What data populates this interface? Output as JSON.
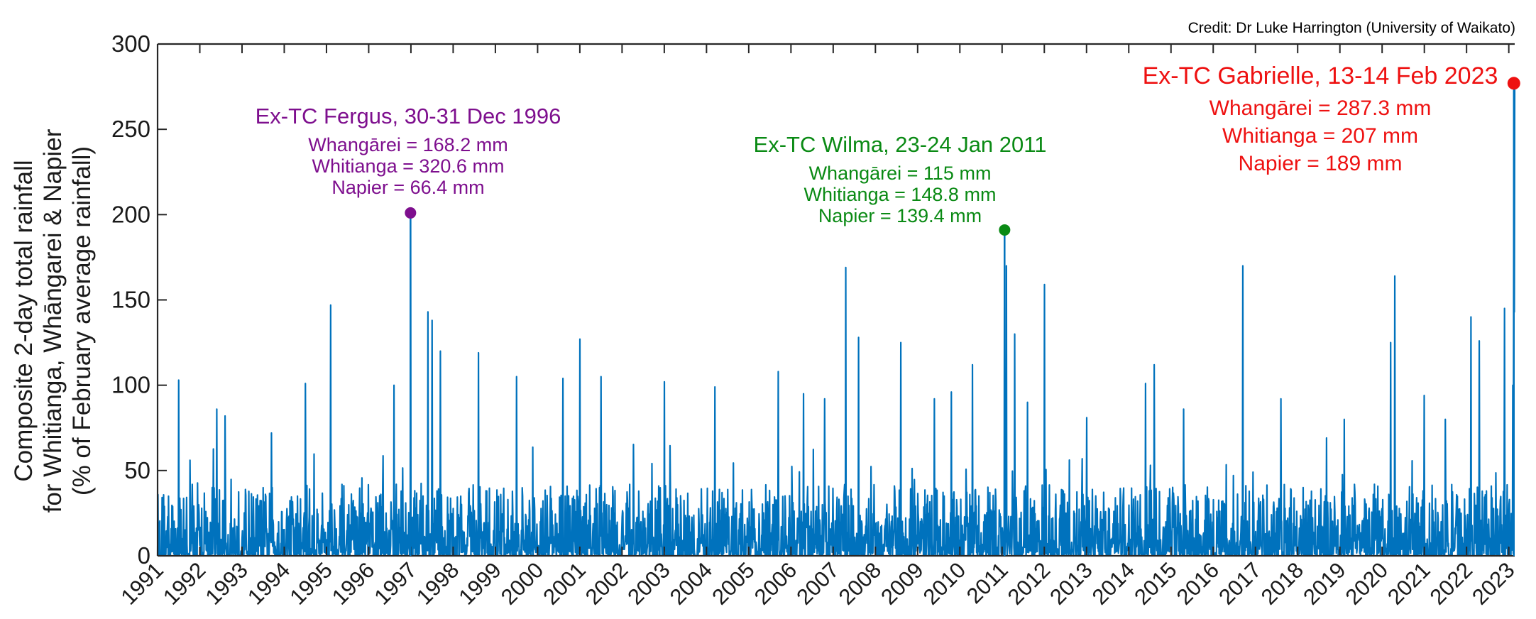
{
  "chart_data": {
    "type": "line",
    "credit": "Credit: Dr Luke Harrington (University of Waikato)",
    "ylabel": [
      "Composite 2-day total rainfall",
      "for Whitianga, Whāngarei & Napier",
      "(% of February average rainfall)"
    ],
    "ylim": [
      0,
      300
    ],
    "yticks": [
      "0",
      "50",
      "100",
      "150",
      "200",
      "250",
      "300"
    ],
    "xlim": [
      1991,
      2023
    ],
    "xticks": [
      "1991",
      "1992",
      "1993",
      "1994",
      "1995",
      "1996",
      "1997",
      "1998",
      "1999",
      "2000",
      "2001",
      "2002",
      "2003",
      "2004",
      "2005",
      "2006",
      "2007",
      "2008",
      "2009",
      "2010",
      "2011",
      "2012",
      "2013",
      "2014",
      "2015",
      "2016",
      "2017",
      "2018",
      "2019",
      "2020",
      "2021",
      "2022",
      "2023"
    ],
    "series_color": "#0072BD",
    "peaks": [
      {
        "x": 1991.5,
        "y": 103
      },
      {
        "x": 1992.4,
        "y": 86
      },
      {
        "x": 1992.6,
        "y": 82
      },
      {
        "x": 1993.7,
        "y": 72
      },
      {
        "x": 1994.5,
        "y": 101
      },
      {
        "x": 1995.1,
        "y": 147
      },
      {
        "x": 1996.6,
        "y": 100
      },
      {
        "x": 1997.4,
        "y": 143
      },
      {
        "x": 1997.5,
        "y": 138
      },
      {
        "x": 1997.7,
        "y": 120
      },
      {
        "x": 1998.6,
        "y": 119
      },
      {
        "x": 1999.5,
        "y": 105
      },
      {
        "x": 2000.6,
        "y": 104
      },
      {
        "x": 2001.0,
        "y": 127
      },
      {
        "x": 2001.5,
        "y": 105
      },
      {
        "x": 2003.0,
        "y": 102
      },
      {
        "x": 2004.2,
        "y": 99
      },
      {
        "x": 2005.7,
        "y": 108
      },
      {
        "x": 2006.3,
        "y": 95
      },
      {
        "x": 2006.8,
        "y": 92
      },
      {
        "x": 2007.3,
        "y": 169
      },
      {
        "x": 2007.6,
        "y": 128
      },
      {
        "x": 2008.6,
        "y": 125
      },
      {
        "x": 2009.4,
        "y": 92
      },
      {
        "x": 2009.8,
        "y": 96
      },
      {
        "x": 2010.3,
        "y": 112
      },
      {
        "x": 2011.1,
        "y": 170
      },
      {
        "x": 2011.3,
        "y": 130
      },
      {
        "x": 2011.6,
        "y": 90
      },
      {
        "x": 2012.0,
        "y": 159
      },
      {
        "x": 2013.0,
        "y": 81
      },
      {
        "x": 2014.4,
        "y": 101
      },
      {
        "x": 2014.6,
        "y": 112
      },
      {
        "x": 2015.3,
        "y": 86
      },
      {
        "x": 2016.7,
        "y": 170
      },
      {
        "x": 2017.6,
        "y": 92
      },
      {
        "x": 2019.1,
        "y": 80
      },
      {
        "x": 2020.2,
        "y": 125
      },
      {
        "x": 2020.3,
        "y": 164
      },
      {
        "x": 2021.0,
        "y": 94
      },
      {
        "x": 2021.5,
        "y": 80
      },
      {
        "x": 2022.1,
        "y": 140
      },
      {
        "x": 2022.3,
        "y": 126
      },
      {
        "x": 2022.9,
        "y": 145
      }
    ],
    "events": [
      {
        "name": "Ex-TC Fergus, 30-31 Dec 1996",
        "x": 1996.99,
        "y": 201,
        "color": "#7E0F8E",
        "lines": [
          "Whangārei = 168.2 mm",
          "Whitianga = 320.6 mm",
          "Napier = 66.4 mm"
        ]
      },
      {
        "name": "Ex-TC Wilma, 23-24 Jan 2011",
        "x": 2011.06,
        "y": 191,
        "color": "#0A8A14",
        "lines": [
          "Whangārei = 115 mm",
          "Whitianga = 148.8 mm",
          "Napier = 139.4 mm"
        ]
      },
      {
        "name": "Ex-TC Gabrielle, 13-14 Feb 2023",
        "x": 2023.12,
        "y": 277,
        "color": "#EE1111",
        "lines": [
          "Whangārei = 287.3 mm",
          "Whitianga = 207 mm",
          "Napier = 189 mm"
        ]
      }
    ]
  }
}
